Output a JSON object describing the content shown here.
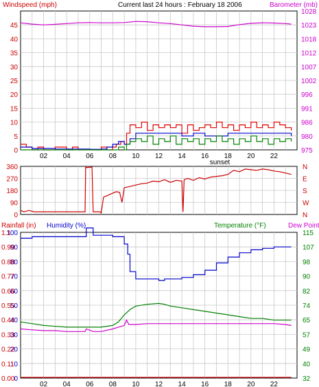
{
  "header": {
    "title": "Current last 24 hours : February 18 2006",
    "left_label": "Windspeed (mph)",
    "right_label": "Barometer (mb)"
  },
  "colors": {
    "wind": "#cc0000",
    "gust": "#e00000",
    "wind_avg": "#0000cc",
    "wind_low": "#008000",
    "barometer": "#cc00cc",
    "direction": "#cc0000",
    "humidity": "#0000cc",
    "temperature": "#008000",
    "dewpoint": "#cc00cc",
    "rain": "#cc0000",
    "grid": "#c8c8c8",
    "frame": "#000000"
  },
  "chart_data": [
    {
      "id": "wind_baro",
      "type": "line",
      "title": "Current last 24 hours : February 18 2006",
      "ylabel": "Windspeed (mph)",
      "ylabel_right": "Barometer (mb)",
      "ylim": [
        0,
        50
      ],
      "ylim_right": [
        975,
        1028
      ],
      "x_ticks": [
        "02",
        "04",
        "06",
        "08",
        "10",
        "12",
        "14",
        "16",
        "18",
        "20",
        "22"
      ],
      "x_annotation": "sunset",
      "y_ticks": [
        "0",
        "5",
        "10",
        "15",
        "20",
        "25",
        "30",
        "35",
        "40",
        "45"
      ],
      "y_ticks_right": [
        "975",
        "980",
        "986",
        "991",
        "996",
        "1002",
        "1007",
        "1012",
        "1018",
        "1023",
        "1028"
      ],
      "grid": true,
      "series": [
        {
          "key": "gust",
          "x": [
            0,
            0.5,
            1,
            1.5,
            2,
            3,
            4,
            4.5,
            5,
            6,
            6.5,
            7,
            7.5,
            8,
            8.3,
            8.7,
            9,
            9.2,
            9.5,
            10,
            10.5,
            11,
            11.5,
            12,
            12.5,
            13,
            13.5,
            14,
            14.5,
            15,
            15.5,
            16,
            16.5,
            17,
            17.5,
            18,
            18.5,
            19,
            19.5,
            20,
            20.5,
            21,
            21.5,
            22,
            22.5,
            23,
            23.5
          ],
          "y": [
            2,
            1,
            0,
            1,
            0,
            1,
            0,
            1,
            0,
            0,
            0,
            1,
            0,
            1,
            2,
            3,
            2,
            6,
            9,
            8,
            10,
            7,
            9,
            8,
            9,
            8,
            9,
            6,
            9,
            7,
            8,
            9,
            8,
            10,
            8,
            9,
            7,
            9,
            8,
            10,
            8,
            9,
            8,
            10,
            9,
            8,
            7
          ]
        },
        {
          "key": "wind_avg",
          "x": [
            0,
            1,
            2,
            3,
            4,
            5,
            6,
            7,
            7.5,
            8,
            8.5,
            9,
            9.5,
            10,
            11,
            12,
            13,
            14,
            15,
            16,
            17,
            18,
            19,
            20,
            21,
            22,
            23,
            23.5
          ],
          "y": [
            1,
            0.5,
            0.5,
            0.3,
            0.3,
            0.3,
            0.2,
            0.3,
            1,
            2,
            3,
            2,
            4,
            6,
            6,
            6,
            6,
            5,
            6,
            5,
            5,
            6,
            6,
            6,
            6,
            6,
            6,
            5
          ]
        },
        {
          "key": "wind_low",
          "x": [
            0,
            1,
            2,
            3,
            4,
            5,
            6,
            7,
            8,
            8.5,
            9,
            9.2,
            9.5,
            10,
            10.5,
            11,
            11.5,
            12,
            12.5,
            13,
            13.5,
            14,
            14.5,
            15,
            15.5,
            16,
            16.5,
            17,
            17.5,
            18,
            18.5,
            19,
            19.5,
            20,
            20.5,
            21,
            21.5,
            22,
            22.5,
            23,
            23.5
          ],
          "y": [
            0,
            0,
            0,
            0,
            0,
            0,
            0,
            0,
            0,
            1,
            0,
            2,
            3,
            4,
            3,
            5,
            2,
            4,
            3,
            5,
            2,
            4,
            3,
            4,
            2,
            4,
            3,
            5,
            3,
            4,
            2,
            4,
            3,
            5,
            3,
            4,
            2,
            4,
            3,
            4,
            3
          ]
        },
        {
          "key": "barometer",
          "x": [
            0,
            1,
            2,
            3,
            4,
            5,
            6,
            7,
            8,
            9,
            10,
            11,
            12,
            13,
            14,
            15,
            16,
            17,
            18,
            19,
            20,
            21,
            22,
            23,
            23.5
          ],
          "y": [
            1023.5,
            1023,
            1022.7,
            1022.9,
            1023.2,
            1023.5,
            1023.6,
            1023.5,
            1023.5,
            1023.6,
            1024.0,
            1023.9,
            1023.5,
            1023.2,
            1022.7,
            1022.2,
            1022.0,
            1022.0,
            1022.1,
            1022.8,
            1023.3,
            1023.5,
            1023.4,
            1023.2,
            1023.0
          ]
        }
      ]
    },
    {
      "id": "direction",
      "type": "line",
      "ylim": [
        0,
        360
      ],
      "y_ticks": [
        "0",
        "90",
        "180",
        "270",
        "360"
      ],
      "y_ticks_right": [
        "N",
        "W",
        "S",
        "E",
        "N"
      ],
      "grid": true,
      "series": [
        {
          "key": "direction",
          "x": [
            0,
            0.3,
            0.7,
            1.2,
            2,
            3,
            4,
            5,
            5.6,
            5.65,
            5.7,
            6.2,
            6.3,
            6.9,
            7.0,
            7.2,
            7.5,
            8,
            8.3,
            8.6,
            8.8,
            9,
            9.5,
            10,
            10.5,
            11,
            11.5,
            12,
            12.5,
            13,
            13.5,
            14,
            14.1,
            14.2,
            14.5,
            15,
            15.5,
            16,
            16.5,
            17,
            17.5,
            18,
            18.5,
            19,
            19.5,
            20,
            20.5,
            21,
            21.5,
            22,
            22.5,
            23,
            23.5
          ],
          "y": [
            30,
            20,
            30,
            20,
            20,
            20,
            20,
            20,
            20,
            360,
            350,
            355,
            20,
            20,
            10,
            130,
            140,
            160,
            170,
            165,
            90,
            200,
            210,
            220,
            230,
            235,
            250,
            245,
            260,
            240,
            255,
            250,
            20,
            260,
            270,
            255,
            275,
            265,
            280,
            285,
            290,
            300,
            330,
            320,
            340,
            335,
            330,
            340,
            335,
            325,
            320,
            310,
            300
          ]
        }
      ]
    },
    {
      "id": "rain_hum_temp",
      "type": "line",
      "ylabel": "Rainfall (in)",
      "ylabel_2": "Humidity (%)",
      "ylabel_right": "Temperature (°F)",
      "ylabel_right_2": "Dew Point",
      "ylim": [
        0,
        100
      ],
      "ylim_right": [
        32,
        115
      ],
      "x_ticks": [
        "02",
        "04",
        "06",
        "08",
        "10",
        "12",
        "14",
        "16",
        "18",
        "20",
        "22"
      ],
      "x_annotation": "sunset",
      "y_ticks": [
        "0",
        "10",
        "20",
        "30",
        "40",
        "50",
        "60",
        "70",
        "80",
        "90",
        "100"
      ],
      "y_ticks_rain": [
        "0.00",
        "0.11",
        "0.22",
        "0.33",
        "0.44",
        "0.55",
        "0.66",
        "0.77",
        "0.88",
        "0.99",
        "1.1"
      ],
      "y_ticks_right": [
        "32",
        "40",
        "49",
        "57",
        "65",
        "74",
        "82",
        "90",
        "98",
        "107",
        "115"
      ],
      "grid": true,
      "series": [
        {
          "key": "humidity",
          "x": [
            0,
            1,
            2,
            3,
            4,
            5,
            5.6,
            5.7,
            6,
            6.3,
            7,
            8,
            8.5,
            9,
            9.3,
            9.5,
            10,
            11,
            12,
            12.5,
            13,
            14,
            15,
            16,
            17,
            18,
            19,
            20,
            21,
            22,
            23,
            23.5
          ],
          "y": [
            96,
            97,
            97,
            97,
            97,
            97,
            97,
            103,
            103,
            98,
            98,
            97,
            97,
            92,
            85,
            73,
            68,
            68,
            67,
            68,
            68,
            69,
            71,
            74,
            79,
            83,
            86,
            88,
            89,
            90,
            90,
            90
          ]
        },
        {
          "key": "temperature",
          "x": [
            0,
            1,
            2,
            3,
            4,
            5,
            6,
            7,
            8,
            8.5,
            9,
            9.5,
            10,
            11,
            12,
            12.5,
            13,
            14,
            15,
            16,
            17,
            18,
            19,
            20,
            21,
            22,
            23,
            23.5
          ],
          "y": [
            64,
            63,
            62,
            61.5,
            61,
            61,
            61,
            61,
            62,
            64,
            68,
            71,
            73,
            74,
            74.5,
            74,
            73,
            72,
            71,
            70,
            69,
            68,
            67,
            66,
            66,
            65,
            65,
            65
          ]
        },
        {
          "key": "dewpoint",
          "x": [
            0,
            1,
            2,
            3,
            4,
            5,
            5.6,
            5.7,
            6.3,
            7,
            8,
            8.5,
            9,
            9.2,
            9.4,
            10,
            11,
            12,
            13,
            14,
            15,
            16,
            17,
            18,
            19,
            20,
            21,
            22,
            23,
            23.5
          ],
          "y": [
            60,
            59.5,
            59,
            59,
            58.5,
            58.5,
            58.5,
            60,
            58.5,
            58.5,
            60,
            61,
            62,
            65,
            62.5,
            62.5,
            63,
            63,
            63,
            63,
            63,
            63,
            63,
            63,
            63,
            63,
            63,
            63,
            62.5,
            62
          ]
        },
        {
          "key": "rain",
          "x": [
            0,
            23.5
          ],
          "y": [
            0,
            0
          ]
        }
      ]
    }
  ]
}
